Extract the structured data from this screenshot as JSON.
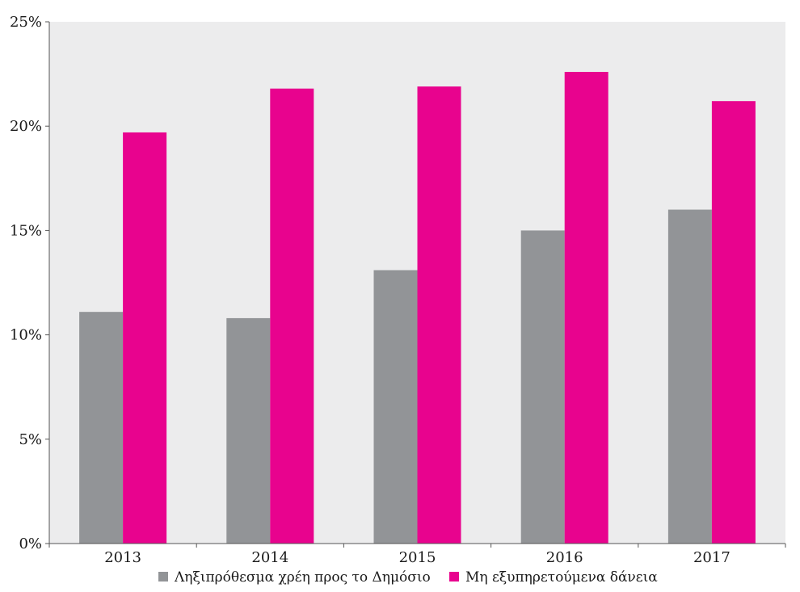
{
  "chart_data": {
    "type": "bar",
    "categories": [
      "2013",
      "2014",
      "2015",
      "2016",
      "2017"
    ],
    "series": [
      {
        "name": "Ληξιπρόθεσμα χρέη προς το Δημόσιο",
        "values": [
          11.1,
          10.8,
          13.1,
          15.0,
          16.0
        ],
        "color": "#929497"
      },
      {
        "name": "Μη εξυπηρετούμενα δάνεια",
        "values": [
          19.7,
          21.8,
          21.9,
          22.6,
          21.2
        ],
        "color": "#e8038e"
      }
    ],
    "ylim": [
      0,
      25
    ],
    "yticks": [
      0,
      5,
      10,
      15,
      20,
      25
    ],
    "ytick_labels": [
      "0%",
      "5%",
      "10%",
      "15%",
      "20%",
      "25%"
    ],
    "title": "",
    "xlabel": "",
    "ylabel": "",
    "grid": false,
    "plot_background": "#ececed",
    "legend_position": "bottom"
  }
}
